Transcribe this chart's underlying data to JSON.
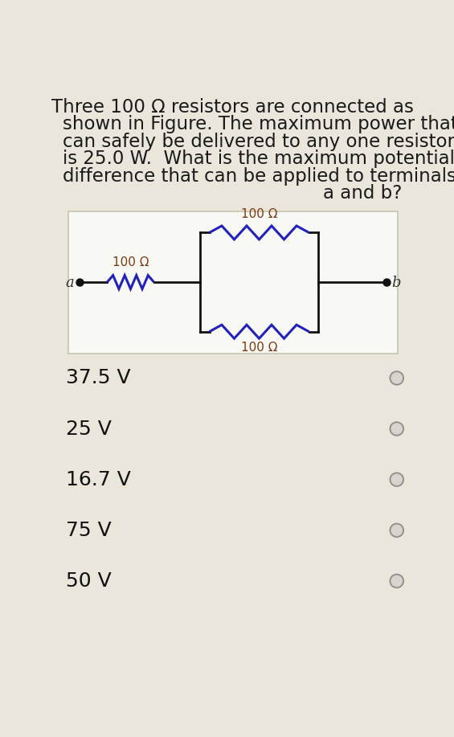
{
  "bg_color": "#eae6db",
  "circuit_bg": "#f8f8f5",
  "title_lines": [
    "Three 100 Ω resistors are connected as",
    "shown in Figure. The maximum power that",
    "can safely be delivered to any one resistor",
    "is 25.0 W.  What is the maximum potential",
    "difference that can be applied to terminals",
    "a and b?"
  ],
  "title_aligns": [
    "center",
    "left",
    "left",
    "left",
    "left",
    "right"
  ],
  "choices": [
    "37.5 V",
    "25 V",
    "16.7 V",
    "75 V",
    "50 V"
  ],
  "resistor_color": "#2222bb",
  "wire_color": "#111111",
  "label_color": "#7b3a10",
  "title_fontsize": 16.5,
  "choice_fontsize": 18,
  "radio_color": "#b8b5ad"
}
